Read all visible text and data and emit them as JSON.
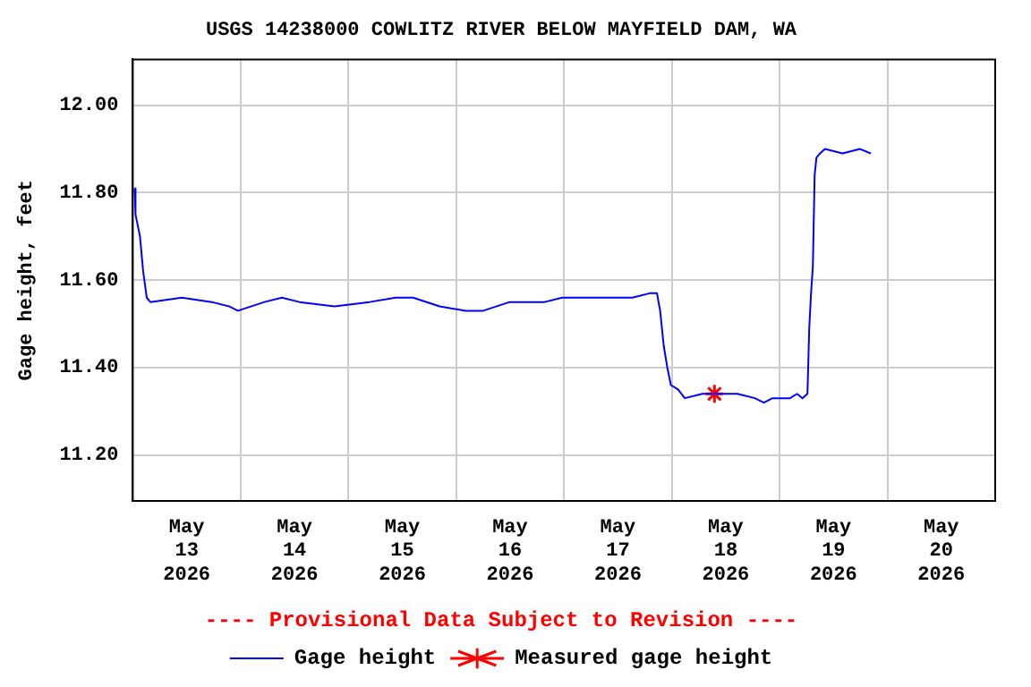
{
  "chart_data": {
    "type": "line",
    "title": "USGS 14238000 COWLITZ RIVER BELOW MAYFIELD DAM, WA",
    "ylabel": "Gage height, feet",
    "annotations": [
      "---- Provisional Data Subject to Revision ----"
    ],
    "series": [
      {
        "name": "Gage height",
        "color": "#0000ff",
        "marker": "none",
        "line_style": "solid",
        "x": [
          "2026-05-13T00:24",
          "2026-05-13T00:36",
          "2026-05-13T01:36",
          "2026-05-13T02:18",
          "2026-05-13T03:06",
          "2026-05-13T03:54",
          "2026-05-13T10:54",
          "2026-05-13T17:36",
          "2026-05-13T21:30",
          "2026-05-13T23:24",
          "2026-05-14T05:18",
          "2026-05-14T09:12",
          "2026-05-14T13:06",
          "2026-05-14T20:54",
          "2026-05-15T04:42",
          "2026-05-15T10:30",
          "2026-05-15T14:24",
          "2026-05-15T20:18",
          "2026-05-16T02:06",
          "2026-05-16T06:00",
          "2026-05-16T11:54",
          "2026-05-16T19:42",
          "2026-05-16T23:36",
          "2026-05-17T07:24",
          "2026-05-17T15:12",
          "2026-05-17T19:06",
          "2026-05-17T20:42",
          "2026-05-17T21:24",
          "2026-05-17T22:12",
          "2026-05-17T23:00",
          "2026-05-17T23:48",
          "2026-05-18T01:24",
          "2026-05-18T02:54",
          "2026-05-18T06:48",
          "2026-05-18T10:42",
          "2026-05-18T14:36",
          "2026-05-18T18:30",
          "2026-05-18T20:30",
          "2026-05-18T22:24",
          "2026-05-19T02:18",
          "2026-05-19T03:54",
          "2026-05-19T05:06",
          "2026-05-19T06:12",
          "2026-05-19T06:36",
          "2026-05-19T07:00",
          "2026-05-19T07:24",
          "2026-05-19T07:48",
          "2026-05-19T08:12",
          "2026-05-19T09:00",
          "2026-05-19T10:06",
          "2026-05-19T14:00",
          "2026-05-19T17:54",
          "2026-05-19T20:18"
        ],
        "values": [
          11.81,
          11.75,
          11.7,
          11.62,
          11.56,
          11.55,
          11.56,
          11.55,
          11.54,
          11.53,
          11.55,
          11.56,
          11.55,
          11.54,
          11.55,
          11.56,
          11.56,
          11.54,
          11.53,
          11.53,
          11.55,
          11.55,
          11.56,
          11.56,
          11.56,
          11.57,
          11.57,
          11.53,
          11.45,
          11.4,
          11.36,
          11.35,
          11.33,
          11.34,
          11.34,
          11.34,
          11.33,
          11.32,
          11.33,
          11.33,
          11.34,
          11.33,
          11.34,
          11.49,
          11.57,
          11.63,
          11.84,
          11.88,
          11.89,
          11.9,
          11.89,
          11.9,
          11.89
        ]
      },
      {
        "name": "Measured gage height",
        "type": "scatter",
        "color": "#ff0000",
        "marker": "cross",
        "x": [
          "2026-05-18T09:30"
        ],
        "values": [
          11.34
        ]
      }
    ],
    "xlim": [
      "2026-05-13T00:00",
      "2026-05-21T00:00"
    ],
    "xticks": [
      {
        "value": "2026-05-13T12:00",
        "label": "May\n13\n2026"
      },
      {
        "value": "2026-05-14T00:00",
        "label": null
      },
      {
        "value": "2026-05-14T12:00",
        "label": "May\n14\n2026"
      },
      {
        "value": "2026-05-15T00:00",
        "label": null
      },
      {
        "value": "2026-05-15T12:00",
        "label": "May\n15\n2026"
      },
      {
        "value": "2026-05-16T00:00",
        "label": null
      },
      {
        "value": "2026-05-16T12:00",
        "label": "May\n16\n2026"
      },
      {
        "value": "2026-05-17T00:00",
        "label": null
      },
      {
        "value": "2026-05-17T12:00",
        "label": "May\n17\n2026"
      },
      {
        "value": "2026-05-18T00:00",
        "label": null
      },
      {
        "value": "2026-05-18T12:00",
        "label": "May\n18\n2026"
      },
      {
        "value": "2026-05-19T00:00",
        "label": null
      },
      {
        "value": "2026-05-19T12:00",
        "label": "May\n19\n2026"
      },
      {
        "value": "2026-05-20T00:00",
        "label": null
      },
      {
        "value": "2026-05-20T12:00",
        "label": "May\n20\n2026"
      }
    ],
    "ylim": [
      11.095,
      12.105
    ],
    "yticks": [
      {
        "value": 11.2,
        "label": "11.20"
      },
      {
        "value": 11.4,
        "label": "11.40"
      },
      {
        "value": 11.6,
        "label": "11.60"
      },
      {
        "value": 11.8,
        "label": "11.80"
      },
      {
        "value": 12.0,
        "label": "12.00"
      }
    ],
    "grid": true,
    "legend": "bottom"
  }
}
